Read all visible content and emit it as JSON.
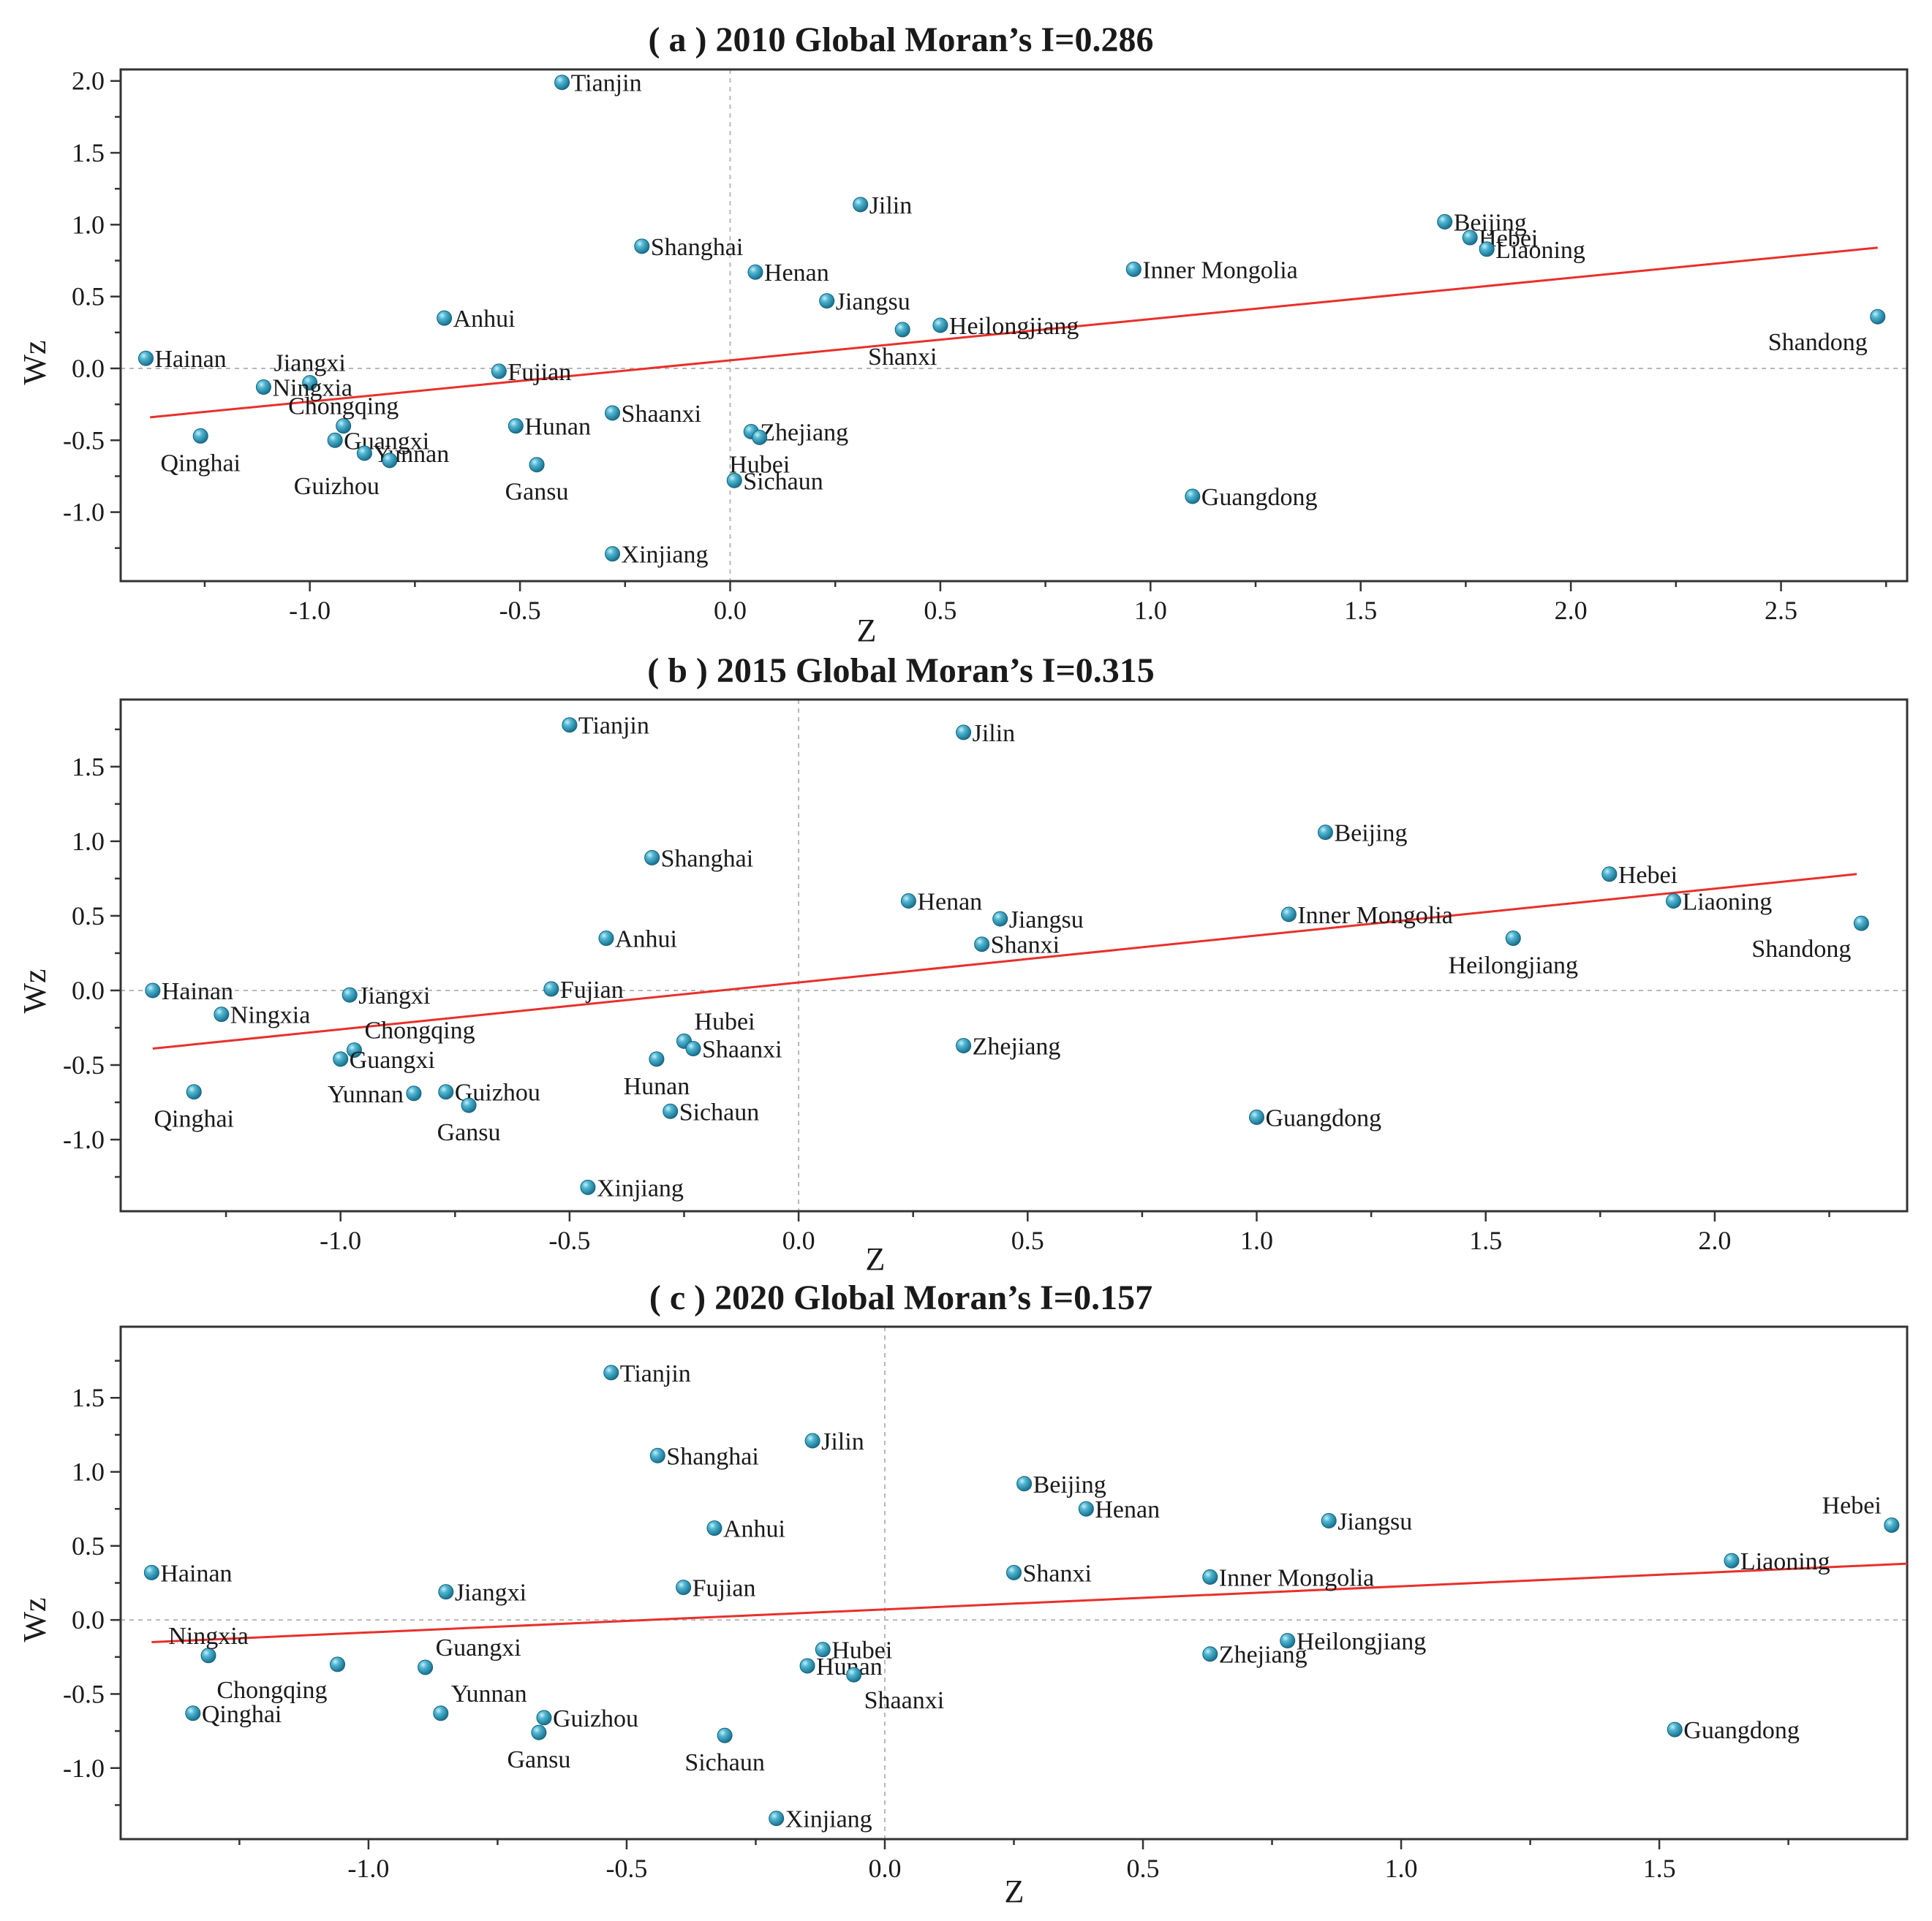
{
  "colors": {
    "point": "#2a9dbb",
    "fit_line": "#e8302c",
    "frame": "#333333",
    "guide": "#b8b8b8"
  },
  "chart_data": [
    {
      "type": "scatter",
      "title": "( a ) 2010 Global Moran’s I=0.286",
      "xlabel": "Z",
      "ylabel": "Wz",
      "xlim": [
        -1.45,
        2.8
      ],
      "ylim": [
        -1.48,
        2.08
      ],
      "xticks": [
        -1.0,
        -0.5,
        0.0,
        0.5,
        1.0,
        1.5,
        2.0,
        2.5
      ],
      "xtick_labels": [
        "-1.0",
        "-0.5",
        "0.0",
        "0.5",
        "1.0",
        "1.5",
        "2.0",
        "2.5"
      ],
      "yticks": [
        -1.0,
        -0.5,
        0.0,
        0.5,
        1.0,
        1.5,
        2.0
      ],
      "ytick_labels": [
        "-1.0",
        "-0.5",
        "0.0",
        "0.5",
        "1.0",
        "1.5",
        "2.0"
      ],
      "fit_line": {
        "x": [
          -1.38,
          2.73
        ],
        "y": [
          -0.34,
          0.84
        ]
      },
      "points": [
        {
          "name": "Tianjin",
          "x": -0.4,
          "y": 1.99,
          "label_pos": "right"
        },
        {
          "name": "Jilin",
          "x": 0.31,
          "y": 1.14,
          "label_pos": "right"
        },
        {
          "name": "Beijing",
          "x": 1.7,
          "y": 1.02,
          "label_pos": "right"
        },
        {
          "name": "Hebei",
          "x": 1.76,
          "y": 0.91,
          "label_pos": "right"
        },
        {
          "name": "Liaoning",
          "x": 1.8,
          "y": 0.83,
          "label_pos": "right"
        },
        {
          "name": "Shanghai",
          "x": -0.21,
          "y": 0.85,
          "label_pos": "right"
        },
        {
          "name": "Henan",
          "x": 0.06,
          "y": 0.67,
          "label_pos": "right"
        },
        {
          "name": "Inner Mongolia",
          "x": 0.96,
          "y": 0.69,
          "label_pos": "right"
        },
        {
          "name": "Jiangsu",
          "x": 0.23,
          "y": 0.47,
          "label_pos": "right"
        },
        {
          "name": "Anhui",
          "x": -0.68,
          "y": 0.35,
          "label_pos": "right"
        },
        {
          "name": "Heilongjiang",
          "x": 0.5,
          "y": 0.3,
          "label_pos": "right"
        },
        {
          "name": "Shanxi",
          "x": 0.41,
          "y": 0.27,
          "label_pos": "below"
        },
        {
          "name": "Shandong",
          "x": 2.73,
          "y": 0.36,
          "label_pos": "below-left"
        },
        {
          "name": "Hainan",
          "x": -1.39,
          "y": 0.07,
          "label_pos": "right"
        },
        {
          "name": "Jiangxi",
          "x": -1.0,
          "y": -0.1,
          "label_pos": "above"
        },
        {
          "name": "Fujian",
          "x": -0.55,
          "y": -0.02,
          "label_pos": "right"
        },
        {
          "name": "Ningxia",
          "x": -1.11,
          "y": -0.13,
          "label_pos": "right"
        },
        {
          "name": "Chongqing",
          "x": -0.92,
          "y": -0.4,
          "label_pos": "above"
        },
        {
          "name": "Shaanxi",
          "x": -0.28,
          "y": -0.31,
          "label_pos": "right"
        },
        {
          "name": "Hunan",
          "x": -0.51,
          "y": -0.4,
          "label_pos": "right"
        },
        {
          "name": "Guangxi",
          "x": -0.94,
          "y": -0.5,
          "label_pos": "right"
        },
        {
          "name": "Yunnan",
          "x": -0.87,
          "y": -0.59,
          "label_pos": "right"
        },
        {
          "name": "Guizhou",
          "x": -0.81,
          "y": -0.64,
          "label_pos": "below-left"
        },
        {
          "name": "Qinghai",
          "x": -1.26,
          "y": -0.47,
          "label_pos": "below"
        },
        {
          "name": "Zhejiang",
          "x": 0.05,
          "y": -0.44,
          "label_pos": "right"
        },
        {
          "name": "Hubei",
          "x": 0.07,
          "y": -0.48,
          "label_pos": "below"
        },
        {
          "name": "Gansu",
          "x": -0.46,
          "y": -0.67,
          "label_pos": "below"
        },
        {
          "name": "Sichaun",
          "x": 0.01,
          "y": -0.78,
          "label_pos": "right"
        },
        {
          "name": "Guangdong",
          "x": 1.1,
          "y": -0.89,
          "label_pos": "right"
        },
        {
          "name": "Xinjiang",
          "x": -0.28,
          "y": -1.29,
          "label_pos": "right"
        }
      ]
    },
    {
      "type": "scatter",
      "title": "( b ) 2015 Global Moran’s I=0.315",
      "xlabel": "Z",
      "ylabel": "Wz",
      "xlim": [
        -1.48,
        2.42
      ],
      "ylim": [
        -1.48,
        1.95
      ],
      "xticks": [
        -1.0,
        -0.5,
        0.0,
        0.5,
        1.0,
        1.5,
        2.0
      ],
      "xtick_labels": [
        "-1.0",
        "-0.5",
        "0.0",
        "0.5",
        "1.0",
        "1.5",
        "2.0"
      ],
      "yticks": [
        -1.0,
        -0.5,
        0.0,
        0.5,
        1.0,
        1.5
      ],
      "ytick_labels": [
        "-1.0",
        "-0.5",
        "0.0",
        "0.5",
        "1.0",
        "1.5"
      ],
      "fit_line": {
        "x": [
          -1.41,
          2.31
        ],
        "y": [
          -0.39,
          0.78
        ]
      },
      "points": [
        {
          "name": "Tianjin",
          "x": -0.5,
          "y": 1.78,
          "label_pos": "right"
        },
        {
          "name": "Jilin",
          "x": 0.36,
          "y": 1.73,
          "label_pos": "right"
        },
        {
          "name": "Beijing",
          "x": 1.15,
          "y": 1.06,
          "label_pos": "right"
        },
        {
          "name": "Shanghai",
          "x": -0.32,
          "y": 0.89,
          "label_pos": "right"
        },
        {
          "name": "Hebei",
          "x": 1.77,
          "y": 0.78,
          "label_pos": "right"
        },
        {
          "name": "Henan",
          "x": 0.24,
          "y": 0.6,
          "label_pos": "right"
        },
        {
          "name": "Liaoning",
          "x": 1.91,
          "y": 0.6,
          "label_pos": "right"
        },
        {
          "name": "Inner Mongolia",
          "x": 1.07,
          "y": 0.51,
          "label_pos": "right"
        },
        {
          "name": "Jiangsu",
          "x": 0.44,
          "y": 0.48,
          "label_pos": "right"
        },
        {
          "name": "Shandong",
          "x": 2.32,
          "y": 0.45,
          "label_pos": "below-left"
        },
        {
          "name": "Anhui",
          "x": -0.42,
          "y": 0.35,
          "label_pos": "right"
        },
        {
          "name": "Heilongjiang",
          "x": 1.56,
          "y": 0.35,
          "label_pos": "below"
        },
        {
          "name": "Shanxi",
          "x": 0.4,
          "y": 0.31,
          "label_pos": "right"
        },
        {
          "name": "Hainan",
          "x": -1.41,
          "y": 0.0,
          "label_pos": "right"
        },
        {
          "name": "Fujian",
          "x": -0.54,
          "y": 0.01,
          "label_pos": "right"
        },
        {
          "name": "Jiangxi",
          "x": -0.98,
          "y": -0.03,
          "label_pos": "right"
        },
        {
          "name": "Ningxia",
          "x": -1.26,
          "y": -0.16,
          "label_pos": "right"
        },
        {
          "name": "Chongqing",
          "x": -0.97,
          "y": -0.4,
          "label_pos": "above-right"
        },
        {
          "name": "Guangxi",
          "x": -1.0,
          "y": -0.46,
          "label_pos": "right"
        },
        {
          "name": "Hubei",
          "x": -0.25,
          "y": -0.34,
          "label_pos": "above-right"
        },
        {
          "name": "Shaanxi",
          "x": -0.23,
          "y": -0.39,
          "label_pos": "right"
        },
        {
          "name": "Hunan",
          "x": -0.31,
          "y": -0.46,
          "label_pos": "below"
        },
        {
          "name": "Zhejiang",
          "x": 0.36,
          "y": -0.37,
          "label_pos": "right"
        },
        {
          "name": "Qinghai",
          "x": -1.32,
          "y": -0.68,
          "label_pos": "below"
        },
        {
          "name": "Yunnan",
          "x": -0.84,
          "y": -0.69,
          "label_pos": "left"
        },
        {
          "name": "Guizhou",
          "x": -0.77,
          "y": -0.68,
          "label_pos": "right"
        },
        {
          "name": "Gansu",
          "x": -0.72,
          "y": -0.77,
          "label_pos": "below"
        },
        {
          "name": "Sichaun",
          "x": -0.28,
          "y": -0.81,
          "label_pos": "right"
        },
        {
          "name": "Guangdong",
          "x": 1.0,
          "y": -0.85,
          "label_pos": "right"
        },
        {
          "name": "Xinjiang",
          "x": -0.46,
          "y": -1.32,
          "label_pos": "right"
        }
      ]
    },
    {
      "type": "scatter",
      "title": "( c ) 2020 Global Moran’s I=0.157",
      "xlabel": "Z",
      "ylabel": "Wz",
      "xlim": [
        -1.48,
        1.98
      ],
      "ylim": [
        -1.48,
        1.98
      ],
      "xticks": [
        -1.0,
        -0.5,
        0.0,
        0.5,
        1.0,
        1.5
      ],
      "xtick_labels": [
        "-1.0",
        "-0.5",
        "0.0",
        "0.5",
        "1.0",
        "1.5"
      ],
      "yticks": [
        -1.0,
        -0.5,
        0.0,
        0.5,
        1.0,
        1.5
      ],
      "ytick_labels": [
        "-1.0",
        "-0.5",
        "0.0",
        "0.5",
        "1.0",
        "1.5"
      ],
      "fit_line": {
        "x": [
          -1.42,
          1.98
        ],
        "y": [
          -0.15,
          0.38
        ]
      },
      "points": [
        {
          "name": "Tianjin",
          "x": -0.53,
          "y": 1.67,
          "label_pos": "right"
        },
        {
          "name": "Jilin",
          "x": -0.14,
          "y": 1.21,
          "label_pos": "right"
        },
        {
          "name": "Shanghai",
          "x": -0.44,
          "y": 1.11,
          "label_pos": "right"
        },
        {
          "name": "Beijing",
          "x": 0.27,
          "y": 0.92,
          "label_pos": "right"
        },
        {
          "name": "Henan",
          "x": 0.39,
          "y": 0.75,
          "label_pos": "right"
        },
        {
          "name": "Jiangsu",
          "x": 0.86,
          "y": 0.67,
          "label_pos": "right"
        },
        {
          "name": "Hebei",
          "x": 1.95,
          "y": 0.64,
          "label_pos": "above-left"
        },
        {
          "name": "Anhui",
          "x": -0.33,
          "y": 0.62,
          "label_pos": "right"
        },
        {
          "name": "Liaoning",
          "x": 1.64,
          "y": 0.4,
          "label_pos": "right"
        },
        {
          "name": "Hainan",
          "x": -1.42,
          "y": 0.32,
          "label_pos": "right"
        },
        {
          "name": "Shanxi",
          "x": 0.25,
          "y": 0.32,
          "label_pos": "right"
        },
        {
          "name": "Inner Mongolia",
          "x": 0.63,
          "y": 0.29,
          "label_pos": "right"
        },
        {
          "name": "Fujian",
          "x": -0.39,
          "y": 0.22,
          "label_pos": "right"
        },
        {
          "name": "Jiangxi",
          "x": -0.85,
          "y": 0.19,
          "label_pos": "right"
        },
        {
          "name": "Ningxia",
          "x": -1.31,
          "y": -0.24,
          "label_pos": "above"
        },
        {
          "name": "Chongqing",
          "x": -1.06,
          "y": -0.3,
          "label_pos": "below-left"
        },
        {
          "name": "Guangxi",
          "x": -0.89,
          "y": -0.32,
          "label_pos": "above-right"
        },
        {
          "name": "Yunnan",
          "x": -0.86,
          "y": -0.63,
          "label_pos": "above-right"
        },
        {
          "name": "Hubei",
          "x": -0.12,
          "y": -0.2,
          "label_pos": "right"
        },
        {
          "name": "Hunan",
          "x": -0.15,
          "y": -0.31,
          "label_pos": "right"
        },
        {
          "name": "Shaanxi",
          "x": -0.06,
          "y": -0.37,
          "label_pos": "below-right"
        },
        {
          "name": "Heilongjiang",
          "x": 0.78,
          "y": -0.14,
          "label_pos": "right"
        },
        {
          "name": "Zhejiang",
          "x": 0.63,
          "y": -0.23,
          "label_pos": "right"
        },
        {
          "name": "Qinghai",
          "x": -1.34,
          "y": -0.63,
          "label_pos": "right"
        },
        {
          "name": "Guizhou",
          "x": -0.66,
          "y": -0.66,
          "label_pos": "right"
        },
        {
          "name": "Gansu",
          "x": -0.67,
          "y": -0.76,
          "label_pos": "below"
        },
        {
          "name": "Sichaun",
          "x": -0.31,
          "y": -0.78,
          "label_pos": "below"
        },
        {
          "name": "Guangdong",
          "x": 1.53,
          "y": -0.74,
          "label_pos": "right"
        },
        {
          "name": "Xinjiang",
          "x": -0.21,
          "y": -1.34,
          "label_pos": "right"
        }
      ]
    }
  ]
}
